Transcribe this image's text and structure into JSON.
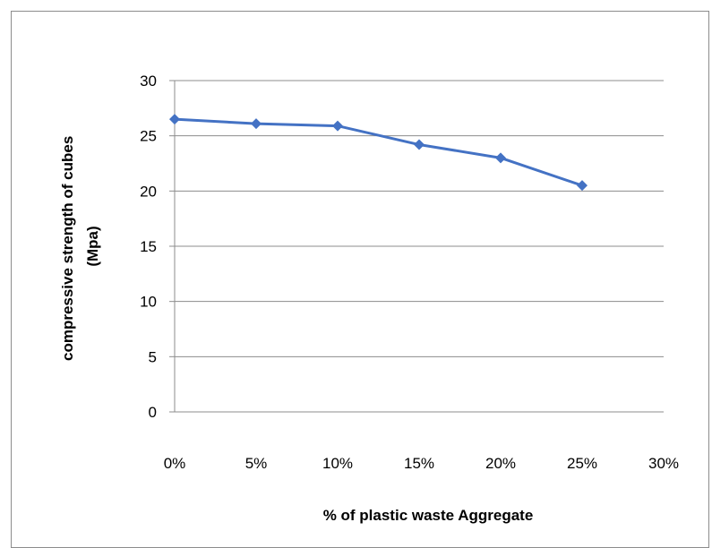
{
  "chart_data": {
    "type": "line",
    "title": "",
    "xlabel": "% of plastic waste Aggregate",
    "ylabel_lines": [
      "compressive strength of cubes",
      "(Mpa)"
    ],
    "x": [
      0,
      5,
      10,
      15,
      20,
      25
    ],
    "x_tick_values": [
      0,
      5,
      10,
      15,
      20,
      25,
      30
    ],
    "x_tick_labels": [
      "0%",
      "5%",
      "10%",
      "15%",
      "20%",
      "25%",
      "30%"
    ],
    "y_tick_values": [
      0,
      5,
      10,
      15,
      20,
      25,
      30
    ],
    "y_tick_labels": [
      "0",
      "5",
      "10",
      "15",
      "20",
      "25",
      "30"
    ],
    "xlim": [
      0,
      30
    ],
    "ylim": [
      0,
      30
    ],
    "grid": "horizontal",
    "legend": "none",
    "series": [
      {
        "values": [
          26.5,
          26.1,
          25.9,
          24.2,
          23.0,
          20.5
        ],
        "color": "#4472c4",
        "marker": "diamond"
      }
    ]
  }
}
